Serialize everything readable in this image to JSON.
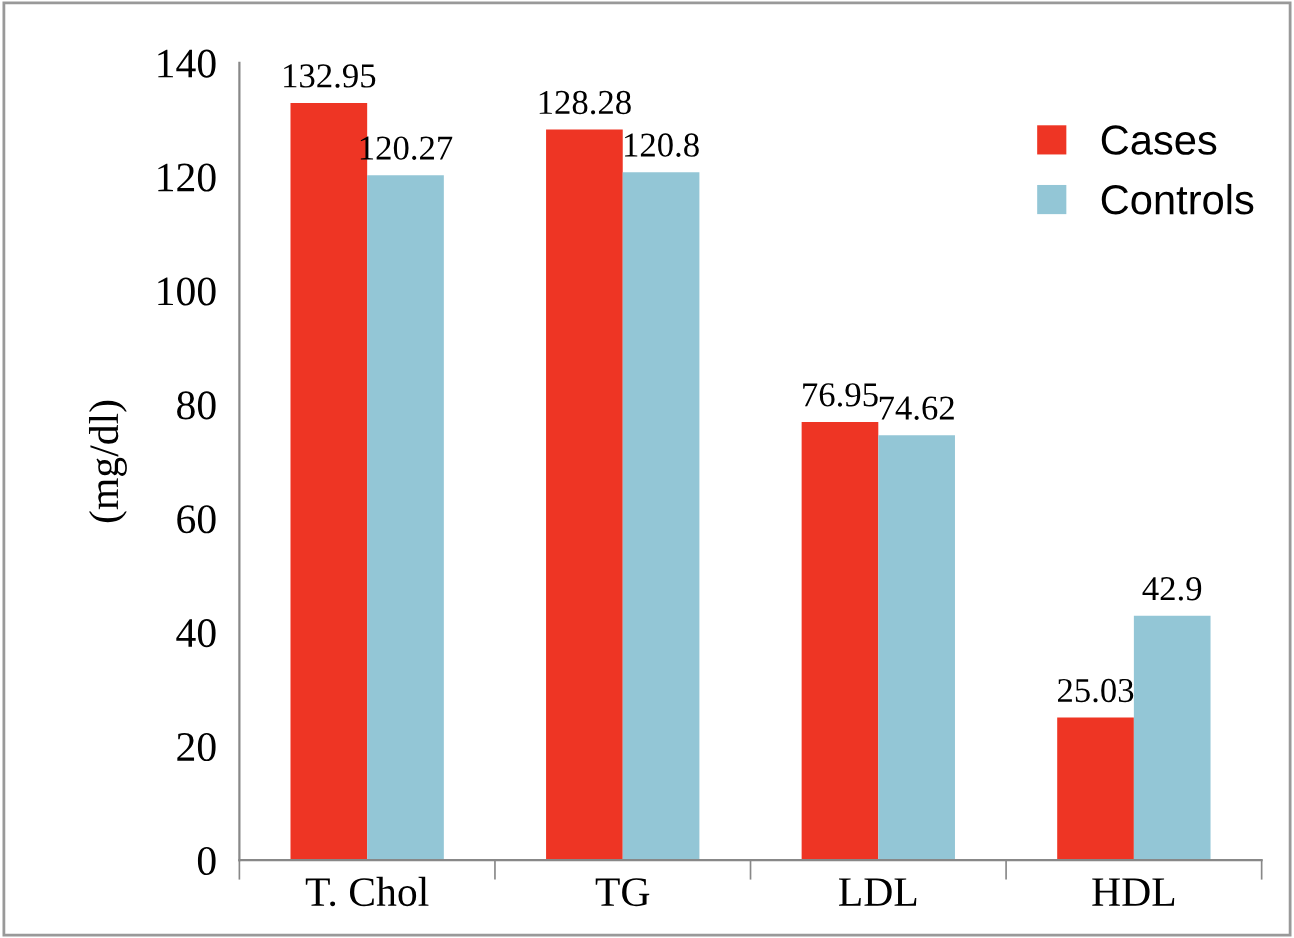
{
  "chart_data": {
    "type": "bar",
    "ylabel": "(mg/dl)",
    "categories": [
      "T. Chol",
      "TG",
      "LDL",
      "HDL"
    ],
    "series": [
      {
        "name": "Cases",
        "color": "#ee3524",
        "values": [
          132.95,
          128.28,
          76.95,
          25.03
        ]
      },
      {
        "name": "Controls",
        "color": "#93c6d6",
        "values": [
          120.27,
          120.8,
          74.62,
          42.9
        ]
      }
    ],
    "ylim": [
      0,
      140
    ],
    "yticks": [
      0,
      20,
      40,
      60,
      80,
      100,
      120,
      140
    ],
    "data_labels": true,
    "grid": false,
    "legend": "top right"
  }
}
